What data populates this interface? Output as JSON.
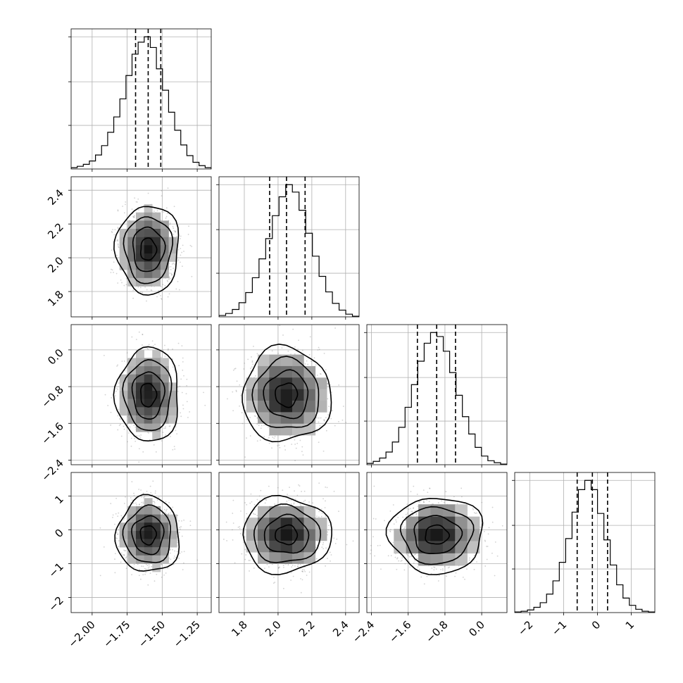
{
  "chart_data": {
    "type": "corner",
    "title": "",
    "parameters": [
      {
        "range": [
          -2.15,
          -1.15
        ],
        "ticks": [
          -2.0,
          -1.75,
          -1.5,
          -1.25
        ],
        "tick_labels": [
          "−2.00",
          "−1.75",
          "−1.50",
          "−1.25"
        ],
        "quantiles": [
          -1.69,
          -1.6,
          -1.51
        ],
        "median": -1.6,
        "sigma": 0.09
      },
      {
        "range": [
          1.65,
          2.48
        ],
        "ticks": [
          1.8,
          2.0,
          2.2,
          2.4
        ],
        "tick_labels": [
          "1.8",
          "2.0",
          "2.2",
          "2.4"
        ],
        "quantiles": [
          1.95,
          2.05,
          2.16
        ],
        "median": 2.05,
        "sigma": 0.105
      },
      {
        "range": [
          -2.5,
          0.55
        ],
        "ticks": [
          -2.4,
          -1.6,
          -0.8,
          0.0
        ],
        "tick_labels": [
          "−2.4",
          "−1.6",
          "−0.8",
          "0.0"
        ],
        "quantiles": [
          -1.4,
          -0.98,
          -0.57
        ],
        "median": -0.98,
        "sigma": 0.41
      },
      {
        "range": [
          -2.45,
          1.7
        ],
        "ticks": [
          -2,
          -1,
          0,
          1
        ],
        "tick_labels": [
          "−2",
          "−1",
          "0",
          "1"
        ],
        "quantiles": [
          -0.6,
          -0.15,
          0.3
        ],
        "median": -0.15,
        "sigma": 0.45
      }
    ],
    "diagonal_histograms": [
      {
        "type": "histogram",
        "bins_start": -2.15,
        "bins_end": -1.15,
        "counts": [
          2,
          4,
          7,
          12,
          21,
          35,
          55,
          78,
          105,
          140,
          172,
          190,
          198,
          182,
          150,
          118,
          85,
          58,
          36,
          20,
          10,
          5,
          2
        ]
      },
      {
        "type": "histogram",
        "bins_start": 1.65,
        "bins_end": 2.48,
        "counts": [
          2,
          5,
          11,
          21,
          36,
          58,
          86,
          116,
          150,
          178,
          196,
          185,
          158,
          124,
          90,
          60,
          37,
          20,
          10,
          4,
          1
        ]
      },
      {
        "type": "histogram",
        "bins_start": -2.5,
        "bins_end": 0.55,
        "counts": [
          2,
          5,
          10,
          19,
          34,
          56,
          86,
          120,
          155,
          182,
          198,
          192,
          170,
          138,
          104,
          72,
          46,
          26,
          13,
          6,
          3,
          1
        ]
      },
      {
        "type": "histogram",
        "bins_start": -2.45,
        "bins_end": 1.7,
        "counts": [
          1,
          2,
          4,
          8,
          15,
          28,
          48,
          76,
          112,
          152,
          186,
          200,
          186,
          150,
          110,
          72,
          42,
          22,
          11,
          5,
          2,
          1
        ]
      }
    ],
    "contour_levels_sigma": [
      0.5,
      1.0,
      1.5,
      2.0
    ],
    "grid": true,
    "legend": "none",
    "quantile_line_style": "dashed"
  }
}
